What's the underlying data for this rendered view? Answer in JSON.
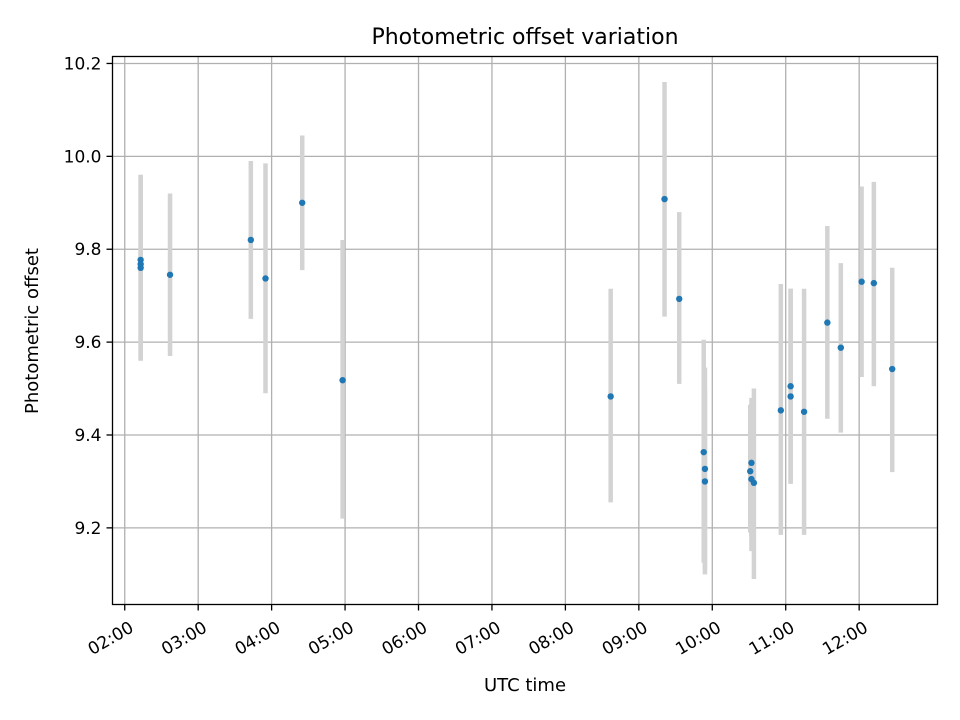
{
  "colors": {
    "point": "#1f77b4",
    "errorbar": "#d3d3d3",
    "grid": "#b0b0b0",
    "axes": "#000000",
    "background": "#ffffff"
  },
  "chart_data": {
    "type": "scatter",
    "title": "Photometric offset variation",
    "xlabel": "UTC time",
    "ylabel": "Photometric offset",
    "grid": true,
    "x_axis_kind": "time",
    "xlim": [
      "01:50",
      "13:04"
    ],
    "ylim": [
      9.035,
      10.215
    ],
    "xticks": [
      "02:00",
      "03:00",
      "04:00",
      "05:00",
      "06:00",
      "07:00",
      "08:00",
      "09:00",
      "10:00",
      "11:00",
      "12:00"
    ],
    "yticks": [
      "9.2",
      "9.4",
      "9.6",
      "9.8",
      "10.0",
      "10.2"
    ],
    "series": [
      {
        "points": [
          {
            "x": "02:13",
            "y": 9.777,
            "low": 9.56,
            "high": 9.96
          },
          {
            "x": "02:13",
            "y": 9.768,
            "low": 9.56,
            "high": 9.96
          },
          {
            "x": "02:13",
            "y": 9.76,
            "low": 9.56,
            "high": 9.96
          },
          {
            "x": "02:37",
            "y": 9.745,
            "low": 9.57,
            "high": 9.92
          },
          {
            "x": "03:43",
            "y": 9.82,
            "low": 9.65,
            "high": 9.99
          },
          {
            "x": "03:55",
            "y": 9.737,
            "low": 9.49,
            "high": 9.985
          },
          {
            "x": "04:25",
            "y": 9.9,
            "low": 9.755,
            "high": 10.045
          },
          {
            "x": "04:58",
            "y": 9.518,
            "low": 9.22,
            "high": 9.82
          },
          {
            "x": "08:37",
            "y": 9.483,
            "low": 9.255,
            "high": 9.715
          },
          {
            "x": "09:21",
            "y": 9.908,
            "low": 9.655,
            "high": 10.16
          },
          {
            "x": "09:33",
            "y": 9.693,
            "low": 9.51,
            "high": 9.88
          },
          {
            "x": "09:53",
            "y": 9.363,
            "low": 9.125,
            "high": 9.605
          },
          {
            "x": "09:54",
            "y": 9.327,
            "low": 9.11,
            "high": 9.545
          },
          {
            "x": "09:54",
            "y": 9.3,
            "low": 9.1,
            "high": 9.5
          },
          {
            "x": "10:31",
            "y": 9.322,
            "low": 9.19,
            "high": 9.465
          },
          {
            "x": "10:32",
            "y": 9.34,
            "low": 9.18,
            "high": 9.48
          },
          {
            "x": "10:32",
            "y": 9.305,
            "low": 9.15,
            "high": 9.46
          },
          {
            "x": "10:34",
            "y": 9.297,
            "low": 9.09,
            "high": 9.5
          },
          {
            "x": "10:56",
            "y": 9.453,
            "low": 9.185,
            "high": 9.725
          },
          {
            "x": "11:04",
            "y": 9.505,
            "low": 9.295,
            "high": 9.715
          },
          {
            "x": "11:04",
            "y": 9.483,
            "low": 9.295,
            "high": 9.715
          },
          {
            "x": "11:15",
            "y": 9.45,
            "low": 9.185,
            "high": 9.715
          },
          {
            "x": "11:34",
            "y": 9.642,
            "low": 9.435,
            "high": 9.85
          },
          {
            "x": "11:45",
            "y": 9.588,
            "low": 9.405,
            "high": 9.77
          },
          {
            "x": "12:02",
            "y": 9.73,
            "low": 9.525,
            "high": 9.935
          },
          {
            "x": "12:12",
            "y": 9.727,
            "low": 9.505,
            "high": 9.945
          },
          {
            "x": "12:27",
            "y": 9.542,
            "low": 9.32,
            "high": 9.76
          }
        ]
      }
    ]
  }
}
